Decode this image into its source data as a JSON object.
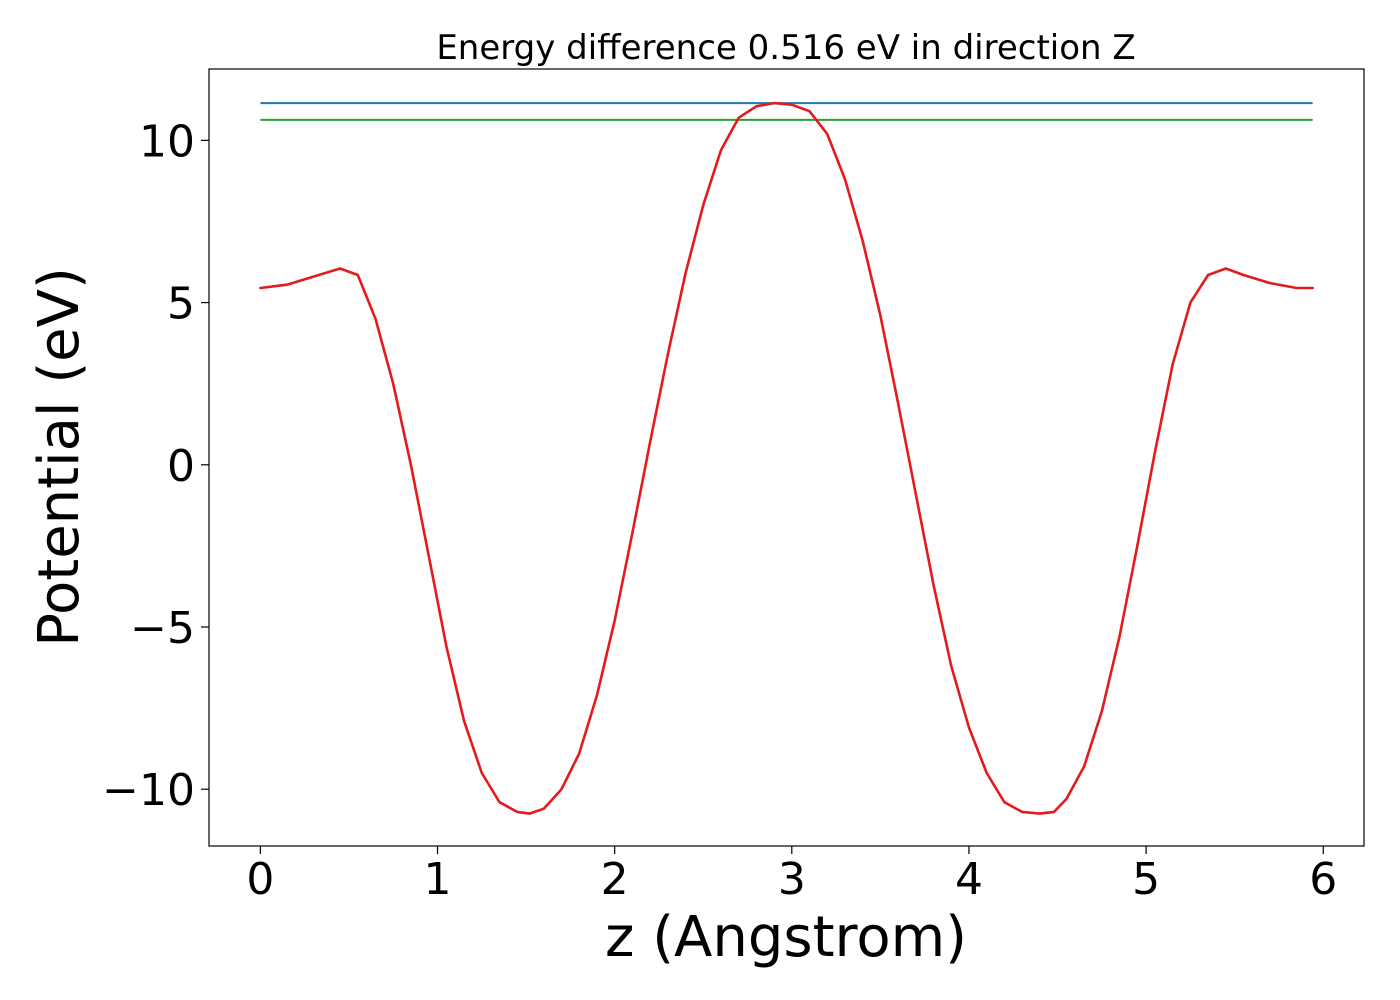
{
  "chart_data": {
    "type": "line",
    "title": "Energy difference 0.516 eV in direction Z",
    "xlabel": "z (Angstrom)",
    "ylabel": "Potential (eV)",
    "xlim": [
      -0.29,
      6.23
    ],
    "ylim": [
      -11.75,
      12.2
    ],
    "x_ticks": [
      0,
      1,
      2,
      3,
      4,
      5,
      6
    ],
    "x_tick_labels": [
      "0",
      "1",
      "2",
      "3",
      "4",
      "5",
      "6"
    ],
    "y_ticks": [
      -10,
      -5,
      0,
      5,
      10
    ],
    "y_tick_labels": [
      "−10",
      "−5",
      "0",
      "5",
      "10"
    ],
    "grid": false,
    "legend": "none",
    "curve": {
      "color": "#e41a1c",
      "x": [
        0,
        0.15,
        0.3,
        0.45,
        0.55,
        0.65,
        0.75,
        0.85,
        0.95,
        1.05,
        1.15,
        1.25,
        1.35,
        1.45,
        1.52,
        1.6,
        1.7,
        1.8,
        1.9,
        2.0,
        2.1,
        2.2,
        2.3,
        2.4,
        2.5,
        2.6,
        2.7,
        2.8,
        2.9,
        3.0,
        3.1,
        3.2,
        3.3,
        3.4,
        3.5,
        3.6,
        3.7,
        3.8,
        3.9,
        4.0,
        4.1,
        4.2,
        4.3,
        4.4,
        4.48,
        4.55,
        4.65,
        4.75,
        4.85,
        4.95,
        5.05,
        5.15,
        5.25,
        5.35,
        5.45,
        5.55,
        5.7,
        5.85,
        5.94
      ],
      "y": [
        5.45,
        5.55,
        5.8,
        6.05,
        5.85,
        4.5,
        2.5,
        0.0,
        -2.8,
        -5.6,
        -7.9,
        -9.5,
        -10.4,
        -10.7,
        -10.75,
        -10.6,
        -10.0,
        -8.9,
        -7.1,
        -4.8,
        -2.1,
        0.7,
        3.4,
        5.9,
        8.0,
        9.7,
        10.7,
        11.05,
        11.15,
        11.1,
        10.9,
        10.2,
        8.8,
        6.9,
        4.6,
        1.9,
        -0.9,
        -3.7,
        -6.2,
        -8.1,
        -9.5,
        -10.4,
        -10.7,
        -10.75,
        -10.7,
        -10.3,
        -9.3,
        -7.6,
        -5.3,
        -2.5,
        0.4,
        3.1,
        5.0,
        5.85,
        6.05,
        5.85,
        5.6,
        5.45,
        5.45
      ]
    },
    "horizontal_lines": [
      {
        "y": 11.15,
        "x_start": 0,
        "x_end": 5.94,
        "color": "#1f77b4"
      },
      {
        "y": 10.63,
        "x_start": 0,
        "x_end": 5.94,
        "color": "#2ca02c"
      }
    ]
  }
}
